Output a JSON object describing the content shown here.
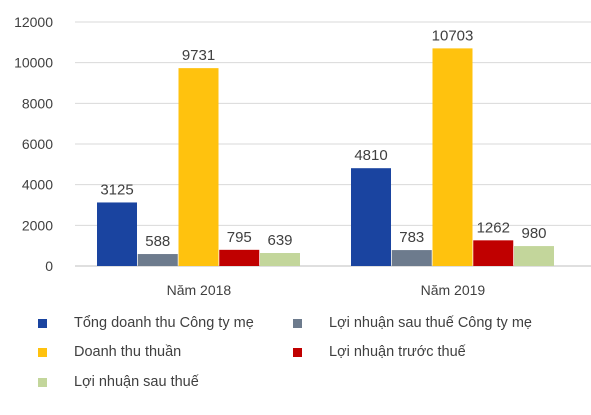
{
  "chart_data": {
    "type": "bar",
    "categories": [
      "Năm 2018",
      "Năm 2019"
    ],
    "series": [
      {
        "name": "Tổng doanh thu Công ty mẹ",
        "values": [
          3125,
          4810
        ],
        "color": "#1a44a0"
      },
      {
        "name": "Lợi nhuận sau thuế Công ty mẹ",
        "values": [
          588,
          783
        ],
        "color": "#6d7b8d"
      },
      {
        "name": "Doanh thu thuần",
        "values": [
          9731,
          10703
        ],
        "color": "#ffc20e"
      },
      {
        "name": "Lợi nhuận trước thuế",
        "values": [
          795,
          1262
        ],
        "color": "#c00000"
      },
      {
        "name": "Lợi nhuận sau thuế",
        "values": [
          639,
          980
        ],
        "color": "#c3d69b"
      }
    ],
    "ylim": [
      0,
      12000
    ],
    "yticks": [
      "0",
      "2000",
      "4000",
      "6000",
      "8000",
      "10000",
      "12000"
    ],
    "grid": true,
    "legend_position": "bottom"
  }
}
